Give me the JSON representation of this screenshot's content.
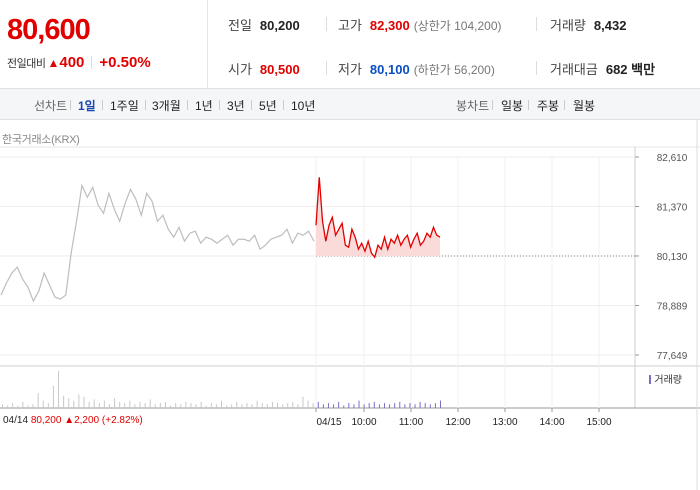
{
  "header": {
    "price": "80,600",
    "change_label": "전일대비",
    "change_arrow": "▲",
    "change_value": "400",
    "change_pct": "+0.50%"
  },
  "stats": {
    "prev_close_label": "전일",
    "prev_close": "80,200",
    "high_label": "고가",
    "high": "82,300",
    "upper_limit_note": "(상한가 104,200)",
    "volume_label": "거래량",
    "volume": "8,432",
    "open_label": "시가",
    "open": "80,500",
    "low_label": "저가",
    "low": "80,100",
    "lower_limit_note": "(하한가 56,200)",
    "amount_label": "거래대금",
    "amount": "682 백만"
  },
  "toolbar": {
    "line_chart_label": "선차트",
    "periods": [
      "1일",
      "1주일",
      "3개월",
      "1년",
      "3년",
      "5년",
      "10년"
    ],
    "active_period": "1일",
    "candle_chart_label": "봉차트",
    "candles": [
      "일봉",
      "주봉",
      "월봉"
    ]
  },
  "chart": {
    "source": "한국거래소(KRX)",
    "volume_legend": "거래량",
    "prev_day_info": {
      "date": "04/14",
      "close": "80,200",
      "arrow": "▲",
      "change": "2,200",
      "pct": "(+2.82%)"
    },
    "colors": {
      "up": "#e10000",
      "down": "#0a4ec3",
      "prev": "#bdbdbd",
      "fill": "#fbdada",
      "volume": "#7b6fc4"
    }
  },
  "chart_data": {
    "type": "line",
    "y_ticks": [
      "82,610",
      "81,370",
      "80,130",
      "78,889",
      "77,649"
    ],
    "y_tick_values": [
      82610,
      81370,
      80130,
      78889,
      77649
    ],
    "ylim": [
      77649,
      82610
    ],
    "reference_value": 80130,
    "x_ticks": [
      "04/15",
      "10:00",
      "11:00",
      "12:00",
      "13:00",
      "14:00",
      "15:00"
    ],
    "series": [
      {
        "values": [
          79150,
          79450,
          79700,
          79850,
          79550,
          79350,
          79000,
          79250,
          79700,
          79400,
          79100,
          79050,
          79150,
          80200,
          81000,
          81900,
          81600,
          81850,
          81400,
          81200,
          81700,
          81300,
          81000,
          81450,
          81800,
          81550,
          81150,
          81700,
          81500,
          81000,
          81150,
          80800,
          80600,
          80850,
          80500,
          80700,
          80750,
          80450,
          80600,
          80550,
          80450,
          80550,
          80650,
          80400,
          80550,
          80550,
          80500,
          80650,
          80300,
          80400,
          80550,
          80600,
          80650,
          80800,
          80450,
          80700,
          80650,
          80750,
          80500
        ]
      },
      {
        "values": [
          80900,
          82100,
          81000,
          80500,
          80900,
          81100,
          80650,
          80800,
          80950,
          80400,
          80350,
          80800,
          80600,
          80300,
          80450,
          80250,
          80500,
          80200,
          80100,
          80400,
          80300,
          80600,
          80300,
          80550,
          80450,
          80650,
          80400,
          80550,
          80650,
          80350,
          80550,
          80700,
          80400,
          80500,
          80700,
          80600,
          80850,
          80650,
          80600
        ]
      }
    ],
    "volume": [
      3,
      2,
      4,
      2,
      5,
      2,
      3,
      12,
      6,
      4,
      18,
      30,
      10,
      8,
      6,
      11,
      9,
      5,
      7,
      4,
      6,
      3,
      8,
      5,
      4,
      6,
      3,
      5,
      4,
      7,
      3,
      4,
      5,
      2,
      4,
      3,
      5,
      4,
      3,
      5,
      2,
      4,
      3,
      6,
      2,
      3,
      5,
      3,
      4,
      3,
      6,
      4,
      3,
      5,
      4,
      3,
      4,
      5,
      3,
      9,
      6,
      4,
      5,
      3,
      4,
      3,
      5,
      2,
      4,
      3,
      6,
      3,
      4,
      5,
      3,
      4,
      3,
      4,
      5,
      3,
      4,
      3,
      5,
      4,
      3,
      4,
      6
    ]
  }
}
